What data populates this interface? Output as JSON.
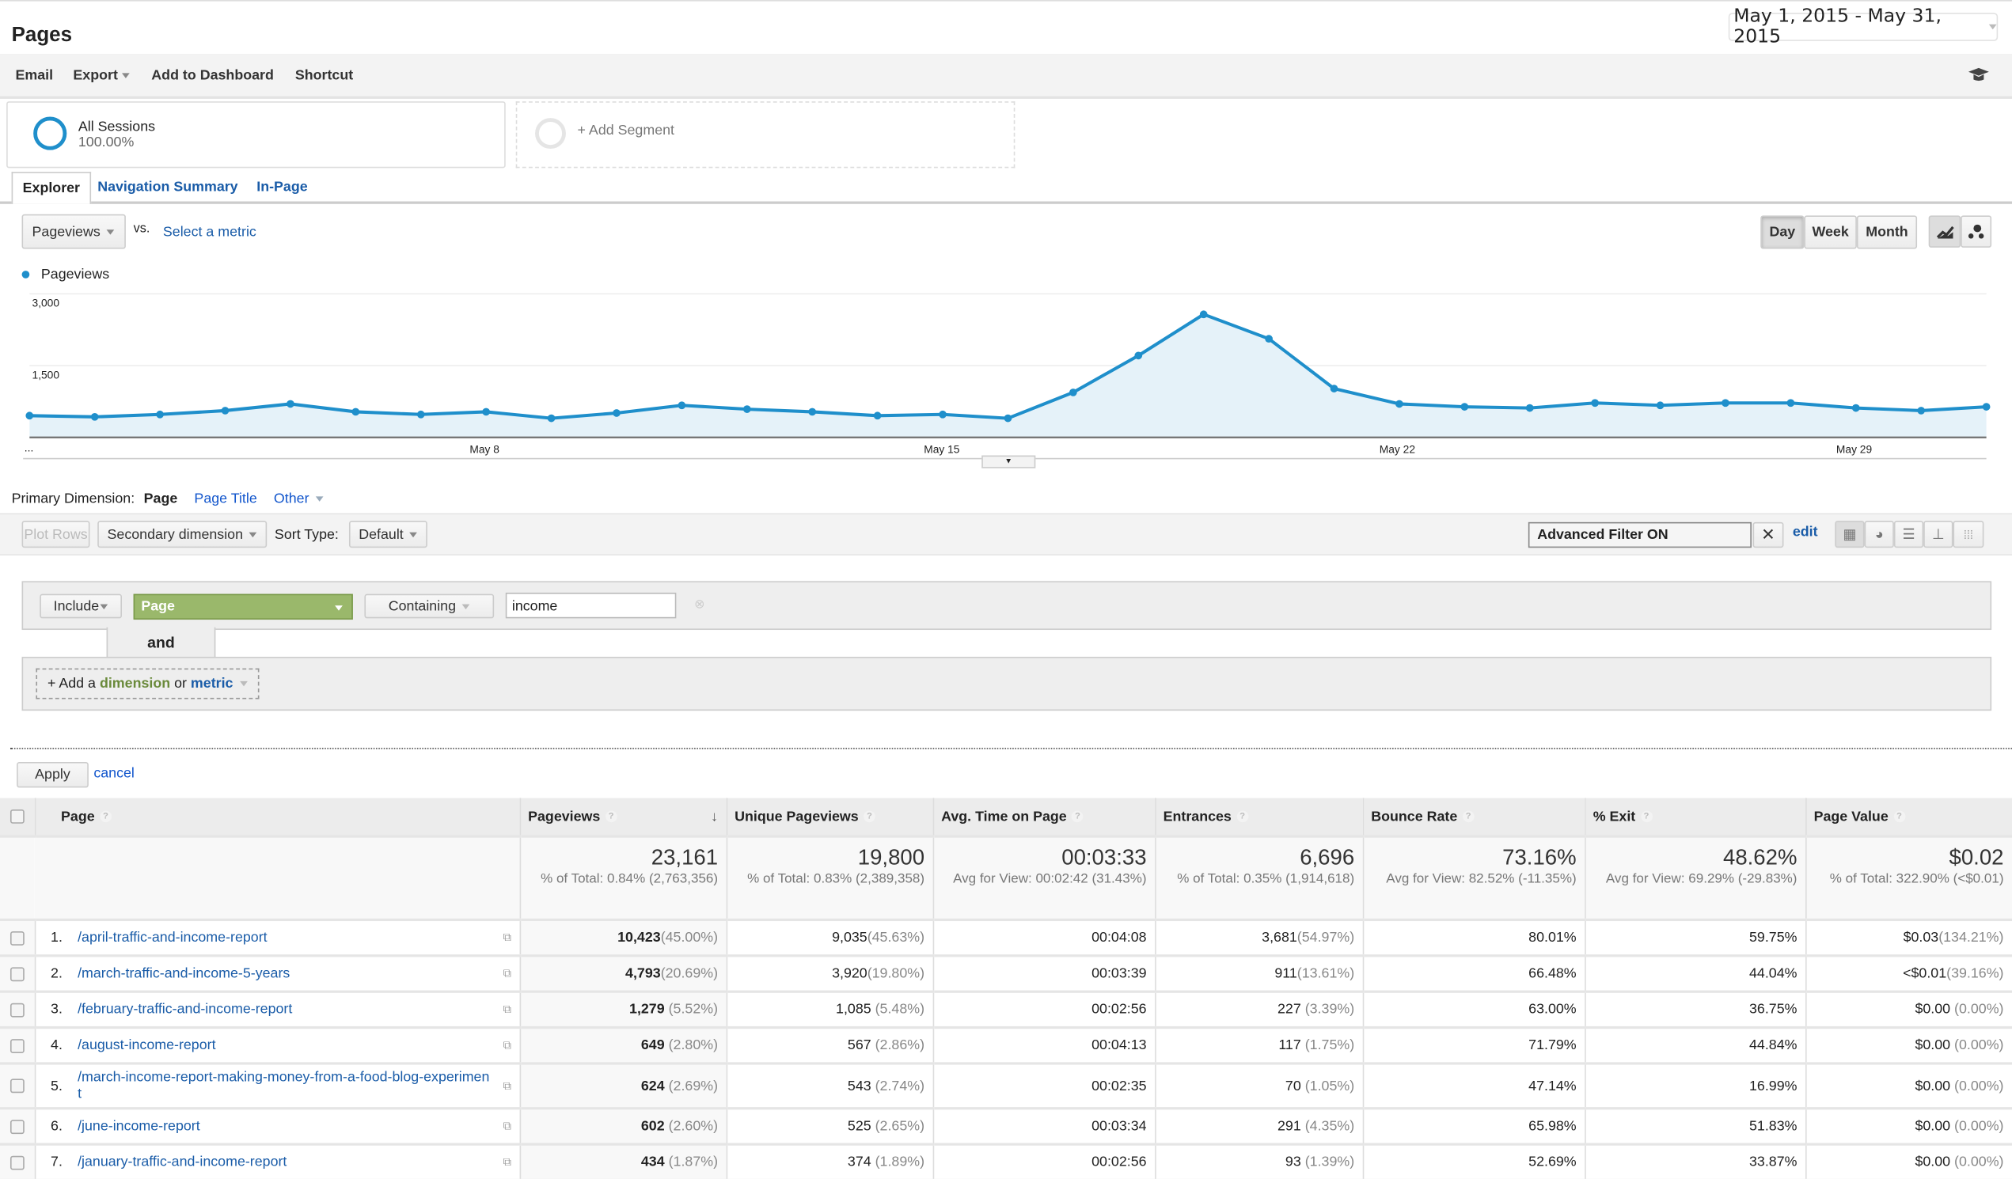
{
  "header": {
    "title": "Pages",
    "date_range": "May 1, 2015 - May 31, 2015"
  },
  "toolbar": {
    "email": "Email",
    "export": "Export",
    "add_dashboard": "Add to Dashboard",
    "shortcut": "Shortcut",
    "icon": "graduation-cap-icon"
  },
  "segments": {
    "all_sessions": "All Sessions",
    "all_sessions_pct": "100.00%",
    "add_segment": "+ Add Segment"
  },
  "tabs": [
    {
      "label": "Explorer",
      "active": true
    },
    {
      "label": "Navigation Summary"
    },
    {
      "label": "In-Page"
    }
  ],
  "chart_controls": {
    "metric": "Pageviews",
    "vs": "vs.",
    "select_metric": "Select a metric",
    "day": "Day",
    "week": "Week",
    "month": "Month",
    "active_period": "Day"
  },
  "chart_data": {
    "type": "area",
    "series": [
      {
        "name": "Pageviews",
        "color": "#1f8fcb",
        "values": [
          455,
          430,
          480,
          560,
          700,
          535,
          480,
          535,
          400,
          510,
          670,
          590,
          535,
          455,
          480,
          400,
          940,
          1710,
          2570,
          2060,
          1020,
          700,
          640,
          615,
          720,
          670,
          720,
          720,
          615,
          560,
          640
        ]
      }
    ],
    "x": [
      "May 1",
      "May 2",
      "May 3",
      "May 4",
      "May 5",
      "May 6",
      "May 7",
      "May 8",
      "May 9",
      "May 10",
      "May 11",
      "May 12",
      "May 13",
      "May 14",
      "May 15",
      "May 16",
      "May 17",
      "May 18",
      "May 19",
      "May 20",
      "May 21",
      "May 22",
      "May 23",
      "May 24",
      "May 25",
      "May 26",
      "May 27",
      "May 28",
      "May 29",
      "May 30",
      "May 31"
    ],
    "x_tick_labels": [
      "...",
      "May 8",
      "May 15",
      "May 22",
      "May 29"
    ],
    "y_tick_labels": [
      "3,000",
      "1,500"
    ],
    "ylim": [
      0,
      3000
    ],
    "grid": true,
    "legend": "top-left"
  },
  "dimension": {
    "label": "Primary Dimension:",
    "page": "Page",
    "page_title": "Page Title",
    "other": "Other"
  },
  "controls": {
    "plot_rows": "Plot Rows",
    "secondary": "Secondary dimension",
    "sort_type": "Sort Type:",
    "sort_default": "Default",
    "filter": "Advanced Filter ON",
    "edit": "edit"
  },
  "filter": {
    "include": "Include",
    "dimension": "Page",
    "match": "Containing",
    "value": "income",
    "and": "and",
    "add_prefix": "+ Add a",
    "add_dimension": "dimension",
    "add_or": "or",
    "add_metric": "metric",
    "apply": "Apply",
    "cancel": "cancel"
  },
  "table": {
    "columns": [
      "Page",
      "Pageviews",
      "Unique Pageviews",
      "Avg. Time on Page",
      "Entrances",
      "Bounce Rate",
      "% Exit",
      "Page Value"
    ],
    "totals": [
      {
        "value": "23,161",
        "sub": "% of Total: 0.84% (2,763,356)"
      },
      {
        "value": "19,800",
        "sub": "% of Total: 0.83% (2,389,358)"
      },
      {
        "value": "00:03:33",
        "sub": "Avg for View: 00:02:42 (31.43%)"
      },
      {
        "value": "6,696",
        "sub": "% of Total: 0.35% (1,914,618)"
      },
      {
        "value": "73.16%",
        "sub": "Avg for View: 82.52% (-11.35%)"
      },
      {
        "value": "48.62%",
        "sub": "Avg for View: 69.29% (-29.83%)"
      },
      {
        "value": "$0.02",
        "sub": "% of Total: 322.90% (<$0.01)"
      }
    ],
    "rows": [
      {
        "n": "1.",
        "page": "/april-traffic-and-income-report",
        "pv": "10,423",
        "pvp": "(45.00%)",
        "upv": "9,035",
        "upvp": "(45.63%)",
        "time": "00:04:08",
        "ent": "3,681",
        "entp": "(54.97%)",
        "bounce": "80.01%",
        "exit": "59.75%",
        "val": "$0.03",
        "valp": "(134.21%)"
      },
      {
        "n": "2.",
        "page": "/march-traffic-and-income-5-years",
        "pv": "4,793",
        "pvp": "(20.69%)",
        "upv": "3,920",
        "upvp": "(19.80%)",
        "time": "00:03:39",
        "ent": "911",
        "entp": "(13.61%)",
        "bounce": "66.48%",
        "exit": "44.04%",
        "val": "<$0.01",
        "valp": "(39.16%)"
      },
      {
        "n": "3.",
        "page": "/february-traffic-and-income-report",
        "pv": "1,279",
        "pvp": " (5.52%)",
        "upv": "1,085",
        "upvp": " (5.48%)",
        "time": "00:02:56",
        "ent": "227",
        "entp": " (3.39%)",
        "bounce": "63.00%",
        "exit": "36.75%",
        "val": "$0.00",
        "valp": " (0.00%)"
      },
      {
        "n": "4.",
        "page": "/august-income-report",
        "pv": "649",
        "pvp": " (2.80%)",
        "upv": "567",
        "upvp": " (2.86%)",
        "time": "00:04:13",
        "ent": "117",
        "entp": " (1.75%)",
        "bounce": "71.79%",
        "exit": "44.84%",
        "val": "$0.00",
        "valp": " (0.00%)"
      },
      {
        "n": "5.",
        "page": "/march-income-report-making-money-from-a-food-blog-experiment",
        "pv": "624",
        "pvp": " (2.69%)",
        "upv": "543",
        "upvp": " (2.74%)",
        "time": "00:02:35",
        "ent": "70",
        "entp": " (1.05%)",
        "bounce": "47.14%",
        "exit": "16.99%",
        "val": "$0.00",
        "valp": " (0.00%)"
      },
      {
        "n": "6.",
        "page": "/june-income-report",
        "pv": "602",
        "pvp": " (2.60%)",
        "upv": "525",
        "upvp": " (2.65%)",
        "time": "00:03:34",
        "ent": "291",
        "entp": " (4.35%)",
        "bounce": "65.98%",
        "exit": "51.83%",
        "val": "$0.00",
        "valp": " (0.00%)"
      },
      {
        "n": "7.",
        "page": "/january-traffic-and-income-report",
        "pv": "434",
        "pvp": " (1.87%)",
        "upv": "374",
        "upvp": " (1.89%)",
        "time": "00:02:56",
        "ent": "93",
        "entp": " (1.39%)",
        "bounce": "52.69%",
        "exit": "33.87%",
        "val": "$0.00",
        "valp": " (0.00%)"
      }
    ]
  }
}
